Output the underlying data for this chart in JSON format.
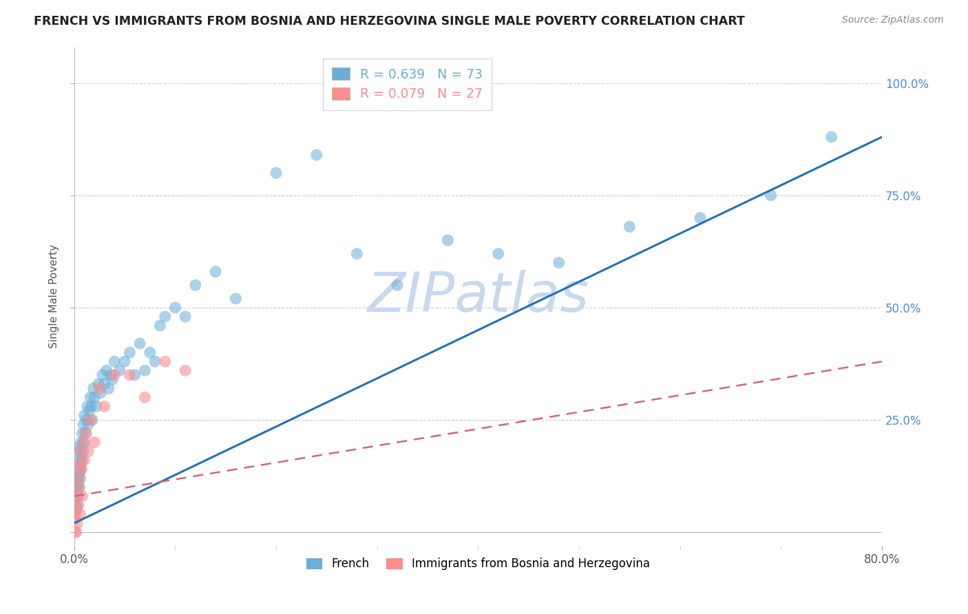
{
  "title": "FRENCH VS IMMIGRANTS FROM BOSNIA AND HERZEGOVINA SINGLE MALE POVERTY CORRELATION CHART",
  "source": "Source: ZipAtlas.com",
  "ylabel": "Single Male Poverty",
  "xlim": [
    0.0,
    0.8
  ],
  "ylim": [
    -0.03,
    1.08
  ],
  "ytick_positions": [
    0.0,
    0.25,
    0.5,
    0.75,
    1.0
  ],
  "ytick_labels": [
    "",
    "25.0%",
    "50.0%",
    "75.0%",
    "100.0%"
  ],
  "xtick_major": [
    0.0,
    0.8
  ],
  "xtick_major_labels": [
    "0.0%",
    "80.0%"
  ],
  "xtick_minor": [
    0.1,
    0.2,
    0.3,
    0.4,
    0.5,
    0.6,
    0.7
  ],
  "legend_entries": [
    {
      "label": "R = 0.639   N = 73",
      "color": "#6baed6"
    },
    {
      "label": "R = 0.079   N = 27",
      "color": "#fc8d8d"
    }
  ],
  "french_legend": "French",
  "bosnia_legend": "Immigrants from Bosnia and Herzegovina",
  "blue_color": "#6baed6",
  "pink_color": "#fc8d8d",
  "trend_blue_color": "#2171b5",
  "trend_pink_color": "#d4657a",
  "watermark": "ZIPatlas",
  "watermark_color": "#c8d8ef",
  "french_x": [
    0.001,
    0.001,
    0.002,
    0.002,
    0.002,
    0.003,
    0.003,
    0.003,
    0.004,
    0.004,
    0.004,
    0.005,
    0.005,
    0.005,
    0.005,
    0.006,
    0.006,
    0.006,
    0.007,
    0.007,
    0.007,
    0.008,
    0.008,
    0.009,
    0.009,
    0.01,
    0.01,
    0.011,
    0.012,
    0.013,
    0.014,
    0.015,
    0.016,
    0.017,
    0.018,
    0.019,
    0.02,
    0.022,
    0.024,
    0.026,
    0.028,
    0.03,
    0.032,
    0.034,
    0.036,
    0.038,
    0.04,
    0.045,
    0.05,
    0.055,
    0.06,
    0.065,
    0.07,
    0.075,
    0.08,
    0.085,
    0.09,
    0.1,
    0.11,
    0.12,
    0.14,
    0.16,
    0.2,
    0.24,
    0.28,
    0.32,
    0.37,
    0.42,
    0.48,
    0.55,
    0.62,
    0.69,
    0.75
  ],
  "french_y": [
    0.04,
    0.06,
    0.05,
    0.08,
    0.1,
    0.06,
    0.09,
    0.12,
    0.08,
    0.11,
    0.14,
    0.1,
    0.13,
    0.16,
    0.19,
    0.12,
    0.15,
    0.18,
    0.14,
    0.17,
    0.2,
    0.16,
    0.22,
    0.18,
    0.24,
    0.2,
    0.26,
    0.22,
    0.25,
    0.28,
    0.24,
    0.27,
    0.3,
    0.28,
    0.25,
    0.32,
    0.3,
    0.28,
    0.33,
    0.31,
    0.35,
    0.33,
    0.36,
    0.32,
    0.35,
    0.34,
    0.38,
    0.36,
    0.38,
    0.4,
    0.35,
    0.42,
    0.36,
    0.4,
    0.38,
    0.46,
    0.48,
    0.5,
    0.48,
    0.55,
    0.58,
    0.52,
    0.8,
    0.84,
    0.62,
    0.55,
    0.65,
    0.62,
    0.6,
    0.68,
    0.7,
    0.75,
    0.88
  ],
  "bosnia_x": [
    0.001,
    0.001,
    0.002,
    0.002,
    0.003,
    0.003,
    0.004,
    0.004,
    0.005,
    0.005,
    0.006,
    0.006,
    0.007,
    0.008,
    0.009,
    0.01,
    0.012,
    0.014,
    0.016,
    0.02,
    0.025,
    0.03,
    0.04,
    0.055,
    0.07,
    0.09,
    0.11
  ],
  "bosnia_y": [
    0.0,
    0.03,
    0.05,
    0.0,
    0.08,
    0.02,
    0.12,
    0.06,
    0.1,
    0.15,
    0.04,
    0.18,
    0.14,
    0.08,
    0.2,
    0.16,
    0.22,
    0.18,
    0.25,
    0.2,
    0.32,
    0.28,
    0.35,
    0.35,
    0.3,
    0.38,
    0.36
  ],
  "french_trend_x0": 0.0,
  "french_trend_y0": 0.02,
  "french_trend_x1": 0.8,
  "french_trend_y1": 0.88,
  "bosnia_trend_x0": 0.0,
  "bosnia_trend_y0": 0.08,
  "bosnia_trend_x1": 0.8,
  "bosnia_trend_y1": 0.38
}
